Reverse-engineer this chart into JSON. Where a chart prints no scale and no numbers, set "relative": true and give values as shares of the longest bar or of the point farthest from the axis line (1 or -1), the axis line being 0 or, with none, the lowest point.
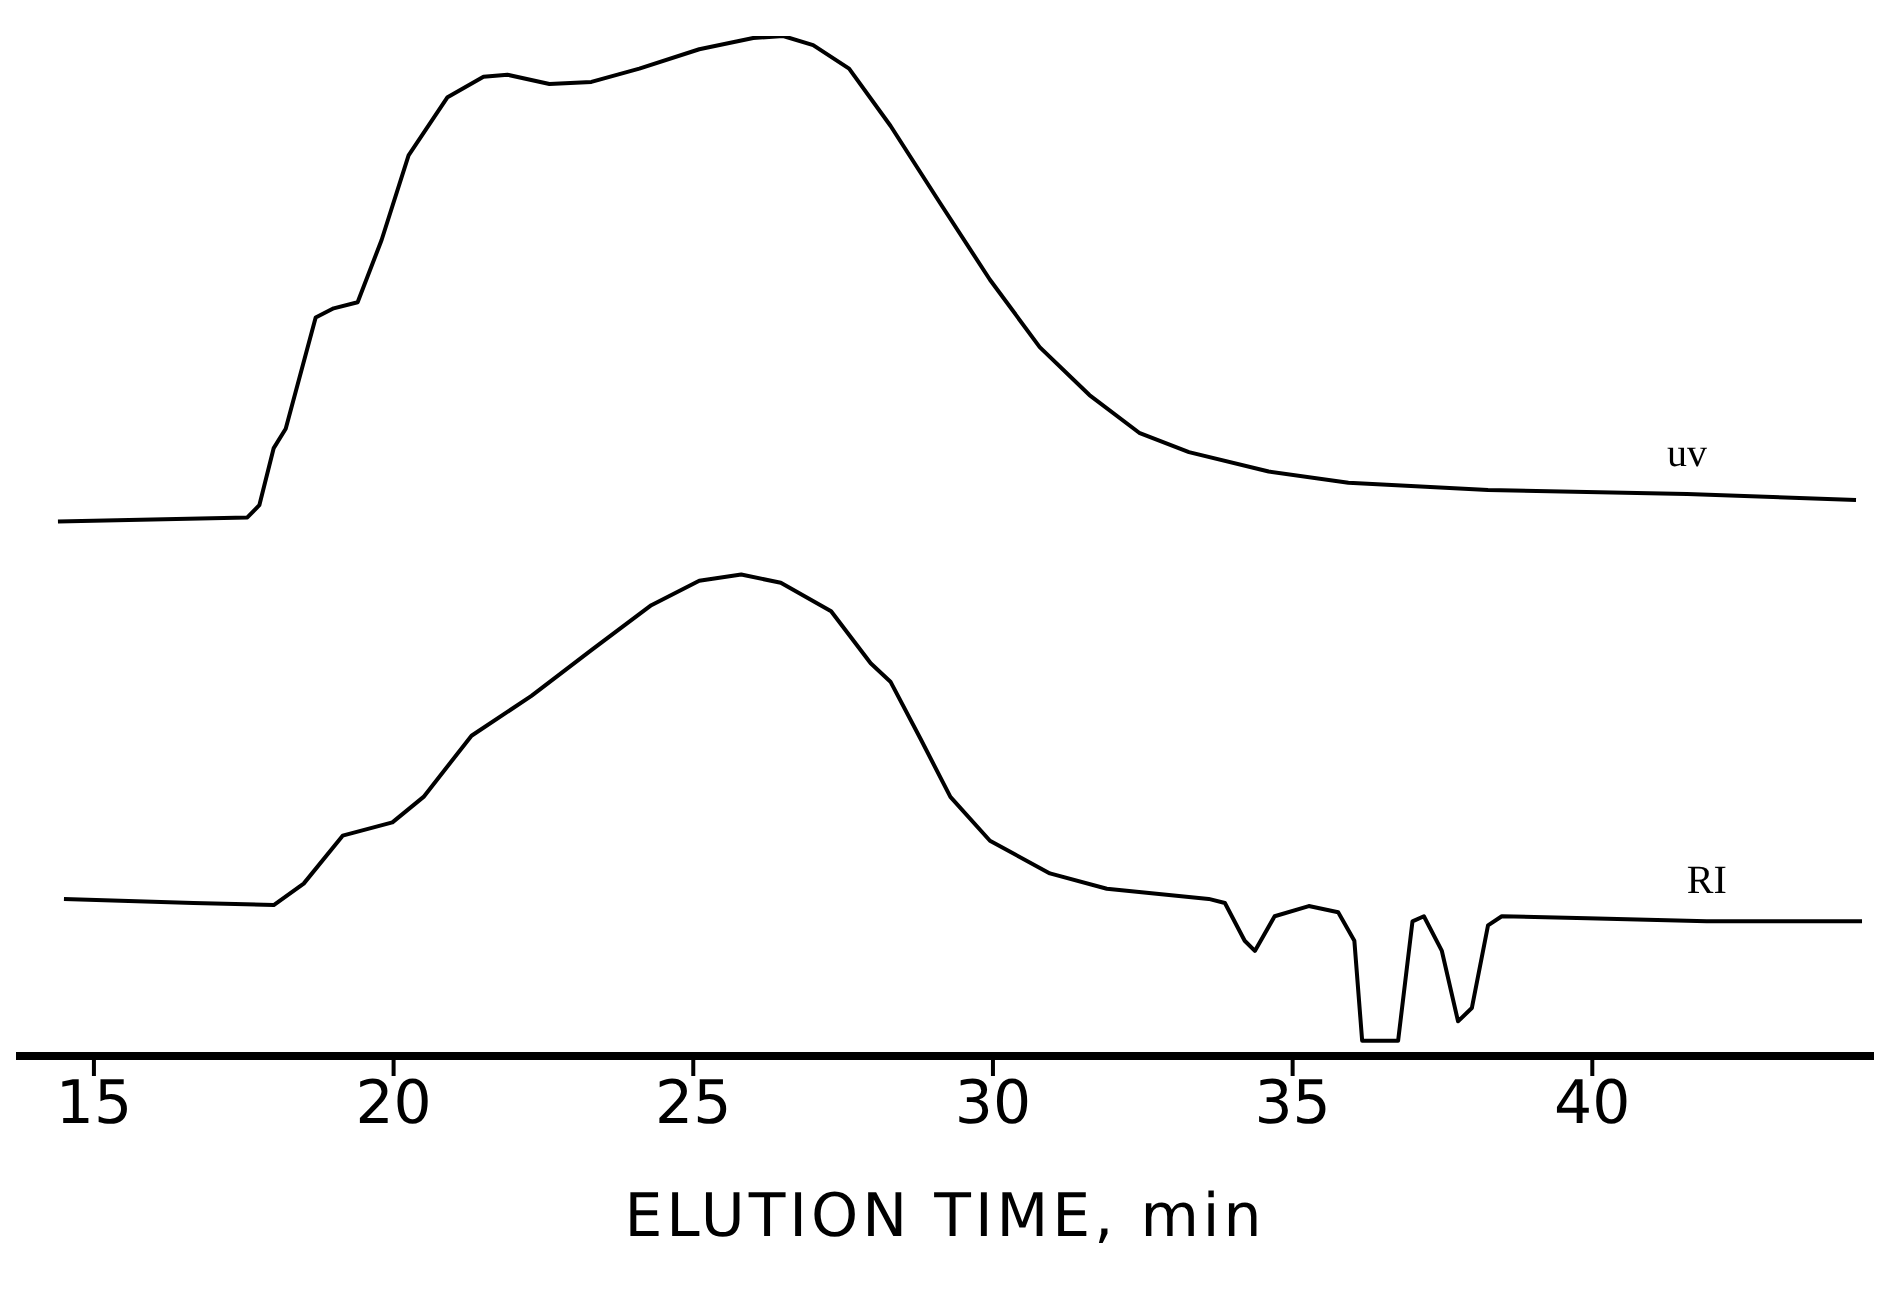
{
  "chart_data": {
    "type": "line",
    "xlabel": "ELUTION  TIME, min",
    "relative": true,
    "xlim": [
      13.7,
      44.7
    ],
    "xticks": [
      15,
      20,
      25,
      30,
      35,
      40
    ],
    "marker": "none",
    "line_style": "solid",
    "series": [
      {
        "name": "uv",
        "color": "#000000",
        "x": [
          14.4,
          17.56,
          17.76,
          18.0,
          18.2,
          18.7,
          19.0,
          19.4,
          19.8,
          20.25,
          20.9,
          21.5,
          21.9,
          22.6,
          23.3,
          24.1,
          25.1,
          26.0,
          26.5,
          27.0,
          27.6,
          28.29,
          29.12,
          29.95,
          30.78,
          31.61,
          32.44,
          33.27,
          34.6,
          35.93,
          38.26,
          41.58,
          44.4
        ],
        "values": [
          0.524,
          0.528,
          0.54,
          0.596,
          0.615,
          0.724,
          0.733,
          0.739,
          0.8,
          0.883,
          0.94,
          0.96,
          0.962,
          0.953,
          0.955,
          0.968,
          0.987,
          0.998,
          1.0,
          0.991,
          0.968,
          0.912,
          0.836,
          0.761,
          0.695,
          0.648,
          0.611,
          0.592,
          0.573,
          0.562,
          0.555,
          0.551,
          0.545
        ]
      },
      {
        "name": "RI",
        "color": "#000000",
        "x": [
          14.5,
          16.66,
          18.0,
          18.5,
          19.15,
          19.98,
          20.5,
          21.3,
          22.3,
          23.3,
          24.3,
          25.1,
          25.8,
          26.46,
          27.3,
          27.96,
          28.29,
          28.8,
          29.29,
          29.95,
          30.95,
          31.9,
          33.6,
          33.87,
          34.2,
          34.37,
          34.7,
          35.27,
          35.76,
          36.03,
          36.16,
          36.76,
          37.0,
          37.19,
          37.49,
          37.76,
          37.99,
          38.26,
          38.49,
          39.92,
          41.91,
          44.5
        ],
        "values": [
          0.154,
          0.15,
          0.148,
          0.169,
          0.216,
          0.229,
          0.254,
          0.314,
          0.353,
          0.398,
          0.442,
          0.466,
          0.472,
          0.464,
          0.436,
          0.385,
          0.367,
          0.31,
          0.254,
          0.211,
          0.179,
          0.164,
          0.154,
          0.15,
          0.113,
          0.103,
          0.137,
          0.147,
          0.141,
          0.113,
          0.015,
          0.015,
          0.132,
          0.137,
          0.103,
          0.034,
          0.047,
          0.128,
          0.137,
          0.135,
          0.132,
          0.132
        ]
      }
    ]
  }
}
